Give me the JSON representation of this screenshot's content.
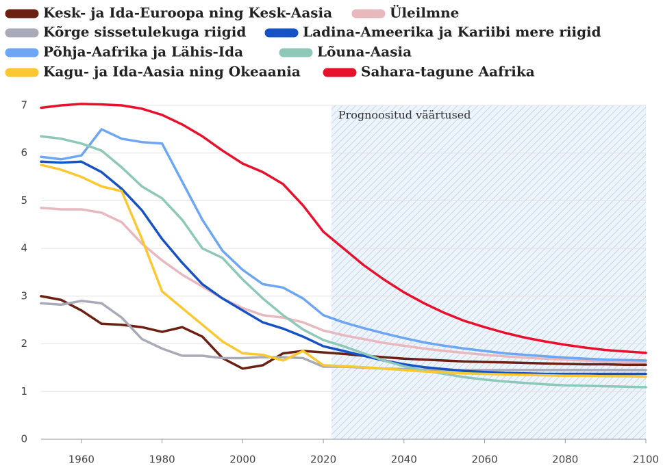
{
  "chart_data": {
    "type": "line",
    "x": [
      1950,
      1955,
      1960,
      1965,
      1970,
      1975,
      1980,
      1985,
      1990,
      1995,
      2000,
      2005,
      2010,
      2015,
      2020,
      2025,
      2030,
      2035,
      2040,
      2045,
      2050,
      2055,
      2060,
      2065,
      2070,
      2075,
      2080,
      2085,
      2090,
      2095,
      2100
    ],
    "series": [
      {
        "name": "Kesk- ja Ida-Euroopa ning Kesk-Aasia",
        "color": "#6b2013",
        "values": [
          3.0,
          2.92,
          2.7,
          2.42,
          2.4,
          2.35,
          2.25,
          2.35,
          2.15,
          1.7,
          1.48,
          1.55,
          1.8,
          1.85,
          1.82,
          1.79,
          1.75,
          1.72,
          1.69,
          1.67,
          1.65,
          1.63,
          1.62,
          1.61,
          1.6,
          1.59,
          1.58,
          1.57,
          1.57,
          1.56,
          1.56
        ]
      },
      {
        "name": "Üleilmne",
        "color": "#e8b8bf",
        "values": [
          4.85,
          4.82,
          4.82,
          4.75,
          4.55,
          4.1,
          3.75,
          3.45,
          3.2,
          2.95,
          2.75,
          2.6,
          2.55,
          2.45,
          2.28,
          2.18,
          2.1,
          2.02,
          1.96,
          1.9,
          1.85,
          1.81,
          1.77,
          1.74,
          1.71,
          1.69,
          1.67,
          1.65,
          1.63,
          1.62,
          1.61
        ]
      },
      {
        "name": "Kõrge sissetulekuga riigid",
        "color": "#a8aab8",
        "values": [
          2.85,
          2.82,
          2.9,
          2.85,
          2.55,
          2.1,
          1.9,
          1.75,
          1.75,
          1.7,
          1.7,
          1.72,
          1.72,
          1.7,
          1.52,
          1.52,
          1.5,
          1.48,
          1.47,
          1.46,
          1.45,
          1.45,
          1.45,
          1.45,
          1.45,
          1.45,
          1.45,
          1.45,
          1.45,
          1.45,
          1.45
        ]
      },
      {
        "name": "Ladina-Ameerika ja Kariibi mere riigid",
        "color": "#1652c4",
        "values": [
          5.82,
          5.8,
          5.82,
          5.6,
          5.25,
          4.8,
          4.2,
          3.7,
          3.25,
          2.95,
          2.7,
          2.45,
          2.32,
          2.15,
          1.95,
          1.85,
          1.75,
          1.65,
          1.57,
          1.51,
          1.47,
          1.43,
          1.41,
          1.39,
          1.38,
          1.37,
          1.37,
          1.37,
          1.37,
          1.37,
          1.37
        ]
      },
      {
        "name": "Põhja-Aafrika ja Lähis-Ida",
        "color": "#6ca6f5",
        "values": [
          5.92,
          5.87,
          5.95,
          6.5,
          6.3,
          6.23,
          6.2,
          5.4,
          4.6,
          3.95,
          3.55,
          3.25,
          3.18,
          2.95,
          2.6,
          2.45,
          2.33,
          2.22,
          2.12,
          2.03,
          1.96,
          1.9,
          1.85,
          1.8,
          1.77,
          1.74,
          1.71,
          1.69,
          1.67,
          1.66,
          1.65
        ]
      },
      {
        "name": "Lõuna-Aasia",
        "color": "#8dc8b8",
        "values": [
          6.35,
          6.3,
          6.2,
          6.05,
          5.7,
          5.3,
          5.05,
          4.6,
          4.0,
          3.8,
          3.35,
          2.95,
          2.6,
          2.3,
          2.08,
          1.95,
          1.8,
          1.65,
          1.53,
          1.44,
          1.37,
          1.3,
          1.25,
          1.21,
          1.18,
          1.15,
          1.13,
          1.12,
          1.11,
          1.1,
          1.09
        ]
      },
      {
        "name": "Kagu- ja Ida-Aasia ning Okeaania",
        "color": "#fcc831",
        "values": [
          5.75,
          5.65,
          5.5,
          5.3,
          5.2,
          4.2,
          3.1,
          2.75,
          2.4,
          2.05,
          1.8,
          1.77,
          1.65,
          1.85,
          1.55,
          1.53,
          1.51,
          1.48,
          1.45,
          1.42,
          1.4,
          1.38,
          1.37,
          1.36,
          1.35,
          1.34,
          1.33,
          1.33,
          1.32,
          1.32,
          1.31
        ]
      },
      {
        "name": "Sahara-tagune Aafrika",
        "color": "#e8112d",
        "values": [
          6.95,
          7.0,
          7.03,
          7.02,
          7.0,
          6.93,
          6.8,
          6.6,
          6.35,
          6.05,
          5.78,
          5.6,
          5.35,
          4.9,
          4.35,
          4.0,
          3.65,
          3.35,
          3.08,
          2.85,
          2.65,
          2.48,
          2.35,
          2.23,
          2.13,
          2.05,
          1.98,
          1.92,
          1.87,
          1.84,
          1.81
        ]
      }
    ],
    "xlim": [
      1950,
      2100
    ],
    "xticks": [
      1960,
      1980,
      2000,
      2020,
      2040,
      2060,
      2080,
      2100
    ],
    "ylim": [
      0,
      7
    ],
    "yticks": [
      0,
      1,
      2,
      3,
      4,
      5,
      6,
      7
    ],
    "grid": true,
    "forecast_start": 2022,
    "forecast_label": "Prognoositud väärtused"
  }
}
